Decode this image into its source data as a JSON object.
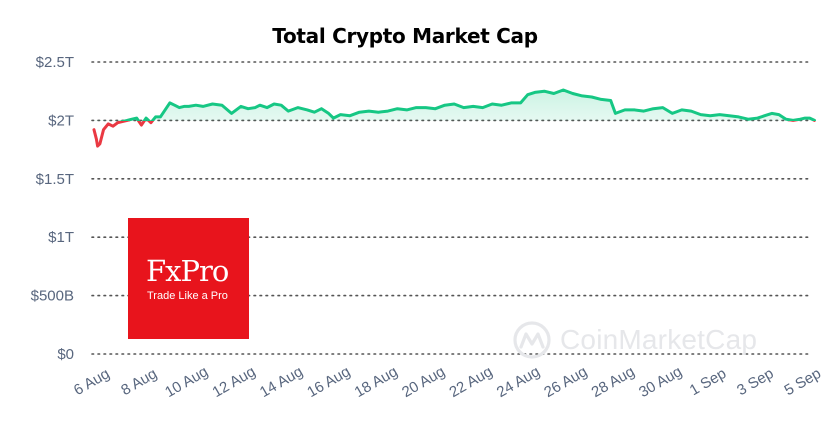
{
  "title": "Total Crypto Market Cap",
  "logo": {
    "name": "FxPro",
    "tagline": "Trade Like a Pro"
  },
  "watermark": {
    "text": "CoinMarketCap"
  },
  "colors": {
    "line_up": "#16c784",
    "line_down": "#ea3943",
    "grid": "#555555",
    "axis_text": "#58667e",
    "logo_bg": "#e8141c",
    "watermark": "#e6e7ea"
  },
  "chart_data": {
    "type": "line",
    "title": "Total Crypto Market Cap",
    "xlabel": "",
    "ylabel": "",
    "ylim": [
      0,
      2.5
    ],
    "xlim": [
      0,
      30.5
    ],
    "grid": true,
    "y_ticks": [
      {
        "value": 2.5,
        "label": "$2.5T"
      },
      {
        "value": 2.0,
        "label": "$2T"
      },
      {
        "value": 1.5,
        "label": "$1.5T"
      },
      {
        "value": 1.0,
        "label": "$1T"
      },
      {
        "value": 0.5,
        "label": "$500B"
      },
      {
        "value": 0,
        "label": "$0"
      }
    ],
    "x_ticks": [
      {
        "day": 0,
        "label": "6 Aug"
      },
      {
        "day": 2,
        "label": "8 Aug"
      },
      {
        "day": 4,
        "label": "10 Aug"
      },
      {
        "day": 6,
        "label": "12 Aug"
      },
      {
        "day": 8,
        "label": "14 Aug"
      },
      {
        "day": 10,
        "label": "16 Aug"
      },
      {
        "day": 12,
        "label": "18 Aug"
      },
      {
        "day": 14,
        "label": "20 Aug"
      },
      {
        "day": 16,
        "label": "22 Aug"
      },
      {
        "day": 18,
        "label": "24 Aug"
      },
      {
        "day": 20,
        "label": "26 Aug"
      },
      {
        "day": 22,
        "label": "28 Aug"
      },
      {
        "day": 24,
        "label": "30 Aug"
      },
      {
        "day": 26,
        "label": "1 Sep"
      },
      {
        "day": 28,
        "label": "3 Sep"
      },
      {
        "day": 30,
        "label": "5 Sep"
      }
    ],
    "baseline": 2.0,
    "series": [
      {
        "name": "Total Crypto Market Cap (T USD)",
        "x": [
          0,
          0.1,
          0.15,
          0.25,
          0.4,
          0.6,
          0.8,
          1.0,
          1.2,
          1.4,
          1.6,
          1.8,
          2.0,
          2.2,
          2.4,
          2.6,
          2.8,
          3.0,
          3.2,
          3.4,
          3.6,
          3.8,
          4.0,
          4.3,
          4.6,
          5.0,
          5.4,
          5.8,
          6.2,
          6.5,
          6.8,
          7.0,
          7.3,
          7.6,
          7.9,
          8.2,
          8.6,
          9.0,
          9.3,
          9.6,
          9.9,
          10.1,
          10.4,
          10.8,
          11.2,
          11.6,
          12.0,
          12.4,
          12.8,
          13.2,
          13.6,
          14.0,
          14.4,
          14.8,
          15.2,
          15.6,
          16.0,
          16.4,
          16.8,
          17.2,
          17.6,
          18.0,
          18.3,
          18.6,
          19.0,
          19.4,
          19.8,
          20.2,
          20.6,
          21.0,
          21.4,
          21.8,
          22.0,
          22.4,
          22.8,
          23.2,
          23.6,
          24.0,
          24.4,
          24.8,
          25.2,
          25.6,
          26.0,
          26.4,
          26.8,
          27.2,
          27.6,
          28.0,
          28.3,
          28.6,
          28.9,
          29.2,
          29.5,
          29.8,
          30.0,
          30.2,
          30.4
        ],
        "y": [
          1.92,
          1.84,
          1.78,
          1.8,
          1.92,
          1.97,
          1.95,
          1.98,
          1.99,
          2.0,
          2.01,
          2.02,
          1.96,
          2.02,
          1.98,
          2.03,
          2.03,
          2.09,
          2.15,
          2.13,
          2.11,
          2.12,
          2.12,
          2.13,
          2.12,
          2.14,
          2.13,
          2.06,
          2.12,
          2.1,
          2.11,
          2.13,
          2.11,
          2.14,
          2.13,
          2.08,
          2.11,
          2.09,
          2.07,
          2.1,
          2.06,
          2.02,
          2.05,
          2.04,
          2.07,
          2.08,
          2.07,
          2.08,
          2.1,
          2.09,
          2.11,
          2.11,
          2.1,
          2.13,
          2.14,
          2.11,
          2.12,
          2.11,
          2.14,
          2.13,
          2.15,
          2.15,
          2.22,
          2.24,
          2.25,
          2.23,
          2.26,
          2.23,
          2.21,
          2.2,
          2.18,
          2.17,
          2.06,
          2.09,
          2.09,
          2.08,
          2.1,
          2.11,
          2.06,
          2.09,
          2.08,
          2.05,
          2.04,
          2.05,
          2.04,
          2.03,
          2.01,
          2.02,
          2.04,
          2.06,
          2.05,
          2.01,
          2.0,
          2.01,
          2.02,
          2.02,
          2.0
        ]
      }
    ]
  }
}
